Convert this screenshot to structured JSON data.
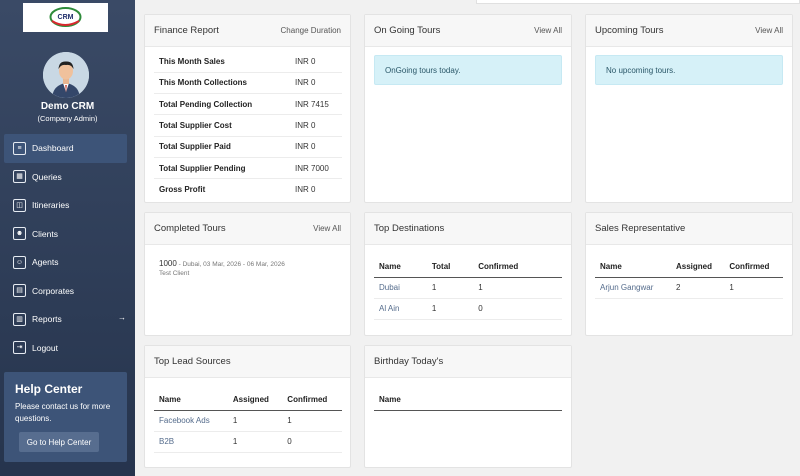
{
  "sidebar": {
    "logo_text": "CRM",
    "profile": {
      "name": "Demo CRM",
      "role": "(Company Admin)"
    },
    "nav": [
      {
        "label": "Dashboard",
        "icon": "menu-lines-icon",
        "active": true
      },
      {
        "label": "Queries",
        "icon": "grid-icon"
      },
      {
        "label": "Itineraries",
        "icon": "box-icon"
      },
      {
        "label": "Clients",
        "icon": "users-icon"
      },
      {
        "label": "Agents",
        "icon": "user-plus-icon"
      },
      {
        "label": "Corporates",
        "icon": "id-card-icon"
      },
      {
        "label": "Reports",
        "icon": "bar-chart-icon",
        "has_arrow": true
      },
      {
        "label": "Logout",
        "icon": "logout-icon"
      }
    ],
    "help": {
      "title": "Help Center",
      "text": "Please contact us for more questions.",
      "button": "Go to Help Center"
    }
  },
  "finance": {
    "title": "Finance Report",
    "link": "Change Duration",
    "rows": [
      {
        "label": "This Month Sales",
        "value": "INR 0"
      },
      {
        "label": "This Month Collections",
        "value": "INR 0"
      },
      {
        "label": "Total Pending Collection",
        "value": "INR 7415"
      },
      {
        "label": "Total Supplier Cost",
        "value": "INR 0"
      },
      {
        "label": "Total Supplier Paid",
        "value": "INR 0"
      },
      {
        "label": "Total Supplier Pending",
        "value": "INR 7000"
      },
      {
        "label": "Gross Profit",
        "value": "INR 0"
      }
    ]
  },
  "ongoing": {
    "title": "On Going Tours",
    "link": "View All",
    "message": "OnGoing tours today."
  },
  "upcoming": {
    "title": "Upcoming Tours",
    "link": "View All",
    "message": "No upcoming tours."
  },
  "completed": {
    "title": "Completed Tours",
    "link": "View All",
    "tours": [
      {
        "id": "1000",
        "details": " - Dubai, 03 Mar, 2026 - 06 Mar, 2026",
        "client": "Test Client"
      }
    ]
  },
  "top_destinations": {
    "title": "Top Destinations",
    "headers": [
      "Name",
      "Total",
      "Confirmed"
    ],
    "rows": [
      {
        "name": "Dubai",
        "total": "1",
        "confirmed": "1"
      },
      {
        "name": "Al Ain",
        "total": "1",
        "confirmed": "0"
      }
    ]
  },
  "sales_rep": {
    "title": "Sales Representative",
    "headers": [
      "Name",
      "Assigned",
      "Confirmed"
    ],
    "rows": [
      {
        "name": "Arjun Gangwar",
        "assigned": "2",
        "confirmed": "1"
      }
    ]
  },
  "lead_sources": {
    "title": "Top Lead Sources",
    "headers": [
      "Name",
      "Assigned",
      "Confirmed"
    ],
    "rows": [
      {
        "name": "Facebook Ads",
        "assigned": "1",
        "confirmed": "1"
      },
      {
        "name": "B2B",
        "assigned": "1",
        "confirmed": "0"
      }
    ]
  },
  "birthday": {
    "title": "Birthday Today's",
    "headers": [
      "Name"
    ]
  }
}
